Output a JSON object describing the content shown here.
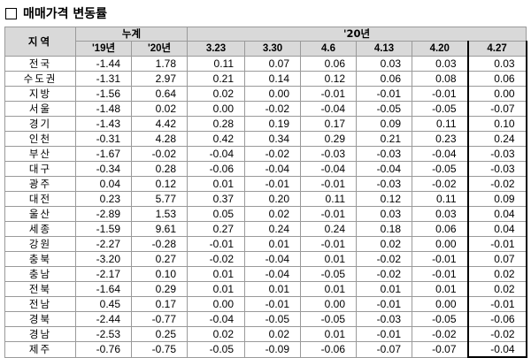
{
  "title": "매매가격 변동률",
  "table": {
    "header_region": "지역",
    "header_cumulative": "누계",
    "header_2020": "'20년",
    "sub_cumulative": [
      "'19년",
      "'20년"
    ],
    "sub_weeks": [
      "3.23",
      "3.30",
      "4.6",
      "4.13",
      "4.20",
      "4.27"
    ],
    "highlight_column": "4.27",
    "rows": [
      {
        "region": "전국",
        "values": [
          "-1.44",
          "1.78",
          "0.11",
          "0.07",
          "0.06",
          "0.03",
          "0.03",
          "0.03"
        ]
      },
      {
        "region": "수도권",
        "values": [
          "-1.31",
          "2.97",
          "0.21",
          "0.14",
          "0.12",
          "0.06",
          "0.08",
          "0.06"
        ]
      },
      {
        "region": "지방",
        "values": [
          "-1.56",
          "0.64",
          "0.02",
          "0.00",
          "-0.01",
          "-0.01",
          "-0.01",
          "0.00"
        ]
      },
      {
        "region": "서울",
        "values": [
          "-1.48",
          "0.02",
          "0.00",
          "-0.02",
          "-0.04",
          "-0.05",
          "-0.05",
          "-0.07"
        ]
      },
      {
        "region": "경기",
        "values": [
          "-1.43",
          "4.42",
          "0.28",
          "0.19",
          "0.17",
          "0.09",
          "0.11",
          "0.10"
        ]
      },
      {
        "region": "인천",
        "values": [
          "-0.31",
          "4.28",
          "0.42",
          "0.34",
          "0.29",
          "0.21",
          "0.23",
          "0.24"
        ]
      },
      {
        "region": "부산",
        "values": [
          "-1.67",
          "-0.02",
          "-0.04",
          "-0.02",
          "-0.03",
          "-0.03",
          "-0.04",
          "-0.03"
        ]
      },
      {
        "region": "대구",
        "values": [
          "-0.34",
          "0.28",
          "-0.06",
          "-0.04",
          "-0.04",
          "-0.04",
          "-0.05",
          "-0.03"
        ]
      },
      {
        "region": "광주",
        "values": [
          "0.04",
          "0.12",
          "0.01",
          "-0.01",
          "-0.01",
          "-0.03",
          "-0.02",
          "-0.02"
        ]
      },
      {
        "region": "대전",
        "values": [
          "0.23",
          "5.77",
          "0.37",
          "0.20",
          "0.11",
          "0.12",
          "0.11",
          "0.09"
        ]
      },
      {
        "region": "울산",
        "values": [
          "-2.89",
          "1.53",
          "0.05",
          "0.02",
          "-0.01",
          "0.03",
          "0.03",
          "0.04"
        ]
      },
      {
        "region": "세종",
        "values": [
          "-1.59",
          "9.61",
          "0.27",
          "0.24",
          "0.24",
          "0.18",
          "0.06",
          "0.04"
        ]
      },
      {
        "region": "강원",
        "values": [
          "-2.27",
          "-0.28",
          "-0.01",
          "0.01",
          "-0.01",
          "0.02",
          "0.00",
          "-0.01"
        ]
      },
      {
        "region": "충북",
        "values": [
          "-3.20",
          "0.27",
          "-0.02",
          "-0.04",
          "0.01",
          "-0.02",
          "-0.01",
          "0.07"
        ]
      },
      {
        "region": "충남",
        "values": [
          "-2.17",
          "0.10",
          "0.01",
          "-0.04",
          "-0.05",
          "-0.02",
          "-0.01",
          "0.02"
        ]
      },
      {
        "region": "전북",
        "values": [
          "-1.64",
          "0.29",
          "0.01",
          "0.01",
          "0.01",
          "0.01",
          "0.01",
          "0.02"
        ]
      },
      {
        "region": "전남",
        "values": [
          "0.45",
          "0.17",
          "0.00",
          "-0.01",
          "0.00",
          "-0.01",
          "0.00",
          "-0.01"
        ]
      },
      {
        "region": "경북",
        "values": [
          "-2.44",
          "-0.77",
          "-0.04",
          "-0.05",
          "-0.05",
          "-0.03",
          "-0.05",
          "-0.06"
        ]
      },
      {
        "region": "경남",
        "values": [
          "-2.53",
          "0.25",
          "0.02",
          "0.02",
          "0.01",
          "-0.01",
          "-0.02",
          "-0.02"
        ]
      },
      {
        "region": "제주",
        "values": [
          "-0.76",
          "-0.75",
          "-0.05",
          "-0.09",
          "-0.06",
          "-0.07",
          "-0.07",
          "-0.04"
        ]
      }
    ]
  }
}
